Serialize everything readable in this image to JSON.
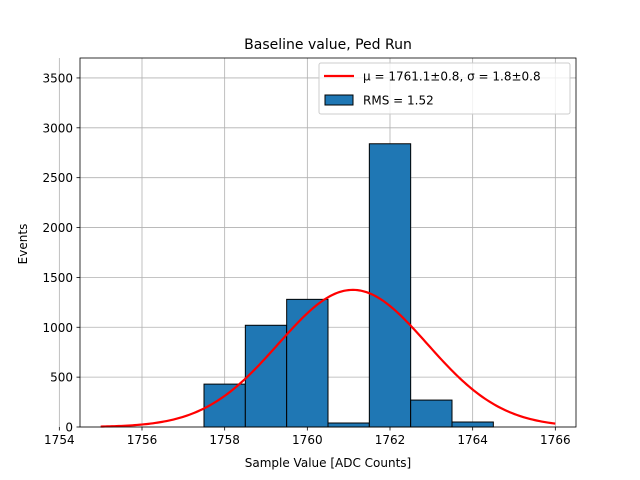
{
  "chart_data": {
    "type": "histogram",
    "title": "Baseline value, Ped Run",
    "xlabel": "Sample Value [ADC Counts]",
    "ylabel": "Events",
    "xlim": [
      1754.5,
      1766.5
    ],
    "ylim": [
      0,
      3700
    ],
    "grid": true,
    "x_ticks": [
      1754,
      1756,
      1758,
      1760,
      1762,
      1764,
      1766
    ],
    "y_ticks": [
      0,
      500,
      1000,
      1500,
      2000,
      2500,
      3000,
      3500
    ],
    "bins": [
      {
        "x0": 1757.5,
        "x1": 1758.5,
        "count": 430
      },
      {
        "x0": 1758.5,
        "x1": 1759.5,
        "count": 1020
      },
      {
        "x0": 1759.5,
        "x1": 1760.5,
        "count": 1280
      },
      {
        "x0": 1760.5,
        "x1": 1761.5,
        "count": 40
      },
      {
        "x0": 1761.5,
        "x1": 1762.5,
        "count": 2840
      },
      {
        "x0": 1762.5,
        "x1": 1763.5,
        "count": 270
      },
      {
        "x0": 1763.5,
        "x1": 1764.5,
        "count": 50
      }
    ],
    "fit": {
      "type": "gaussian",
      "mu": 1761.1,
      "sigma": 1.8,
      "amplitude": 1375,
      "x_range": [
        1755,
        1766
      ]
    },
    "legend": {
      "position": "top-right",
      "entries": [
        {
          "type": "line",
          "label": "μ = 1761.1±0.8, σ = 1.8±0.8",
          "color": "#ff0000"
        },
        {
          "type": "patch",
          "label": "RMS = 1.52",
          "color": "#1f77b4"
        }
      ]
    },
    "colors": {
      "bar": "#1f77b4",
      "bar_edge": "#000000",
      "fit": "#ff0000"
    }
  }
}
